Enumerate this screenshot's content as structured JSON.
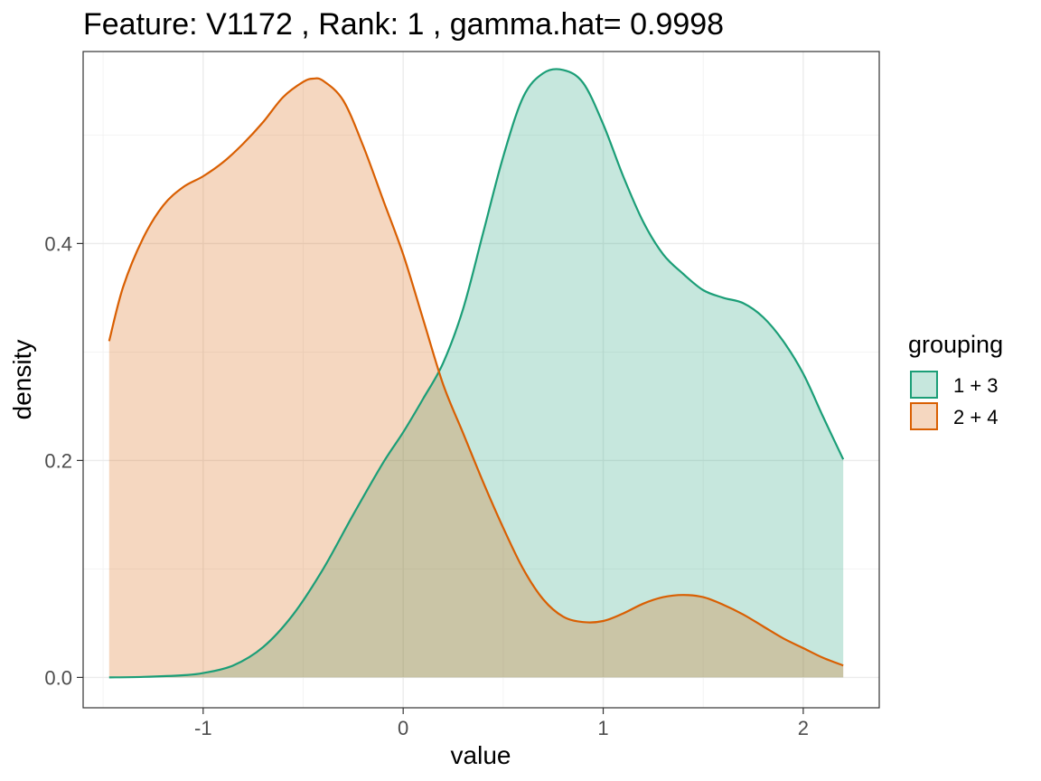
{
  "chart_data": {
    "type": "area",
    "title": "Feature: V1172 , Rank: 1 , gamma.hat= 0.9998",
    "xlabel": "value",
    "ylabel": "density",
    "xlim": [
      -1.6,
      2.38
    ],
    "ylim": [
      -0.028,
      0.577
    ],
    "x_ticks": [
      -1,
      0,
      1,
      2
    ],
    "x_tick_labels": [
      "-1",
      "0",
      "1",
      "2"
    ],
    "y_ticks": [
      0.0,
      0.2,
      0.4
    ],
    "y_tick_labels": [
      "0.0",
      "0.2",
      "0.4"
    ],
    "grid": true,
    "legend": {
      "title": "grouping",
      "placement": "right"
    },
    "series": [
      {
        "name": "1 + 3",
        "line_color": "#1b9e77",
        "fill_color": "#1b9e77",
        "fill_opacity": 0.25,
        "points": [
          [
            -1.47,
            0.0
          ],
          [
            -1.3,
            0.0005
          ],
          [
            -1.1,
            0.002
          ],
          [
            -1.0,
            0.004
          ],
          [
            -0.85,
            0.011
          ],
          [
            -0.7,
            0.028
          ],
          [
            -0.55,
            0.058
          ],
          [
            -0.4,
            0.1
          ],
          [
            -0.25,
            0.15
          ],
          [
            -0.1,
            0.198
          ],
          [
            0.0,
            0.226
          ],
          [
            0.1,
            0.257
          ],
          [
            0.2,
            0.29
          ],
          [
            0.3,
            0.34
          ],
          [
            0.4,
            0.41
          ],
          [
            0.5,
            0.48
          ],
          [
            0.6,
            0.535
          ],
          [
            0.7,
            0.557
          ],
          [
            0.8,
            0.56
          ],
          [
            0.9,
            0.548
          ],
          [
            1.0,
            0.51
          ],
          [
            1.1,
            0.462
          ],
          [
            1.2,
            0.42
          ],
          [
            1.3,
            0.39
          ],
          [
            1.4,
            0.372
          ],
          [
            1.5,
            0.357
          ],
          [
            1.6,
            0.35
          ],
          [
            1.7,
            0.345
          ],
          [
            1.8,
            0.332
          ],
          [
            1.9,
            0.31
          ],
          [
            2.0,
            0.28
          ],
          [
            2.1,
            0.24
          ],
          [
            2.2,
            0.201
          ]
        ]
      },
      {
        "name": "2 + 4",
        "line_color": "#d95f02",
        "fill_color": "#d95f02",
        "fill_opacity": 0.25,
        "points": [
          [
            -1.47,
            0.31
          ],
          [
            -1.4,
            0.36
          ],
          [
            -1.3,
            0.405
          ],
          [
            -1.2,
            0.435
          ],
          [
            -1.1,
            0.452
          ],
          [
            -1.0,
            0.462
          ],
          [
            -0.9,
            0.475
          ],
          [
            -0.8,
            0.492
          ],
          [
            -0.7,
            0.512
          ],
          [
            -0.6,
            0.535
          ],
          [
            -0.5,
            0.549
          ],
          [
            -0.45,
            0.552
          ],
          [
            -0.4,
            0.55
          ],
          [
            -0.3,
            0.532
          ],
          [
            -0.2,
            0.49
          ],
          [
            -0.1,
            0.44
          ],
          [
            0.0,
            0.39
          ],
          [
            0.1,
            0.33
          ],
          [
            0.2,
            0.27
          ],
          [
            0.3,
            0.225
          ],
          [
            0.4,
            0.18
          ],
          [
            0.5,
            0.138
          ],
          [
            0.6,
            0.1
          ],
          [
            0.7,
            0.072
          ],
          [
            0.8,
            0.056
          ],
          [
            0.9,
            0.051
          ],
          [
            1.0,
            0.052
          ],
          [
            1.1,
            0.059
          ],
          [
            1.2,
            0.068
          ],
          [
            1.3,
            0.074
          ],
          [
            1.4,
            0.076
          ],
          [
            1.5,
            0.074
          ],
          [
            1.6,
            0.067
          ],
          [
            1.7,
            0.058
          ],
          [
            1.8,
            0.047
          ],
          [
            1.9,
            0.036
          ],
          [
            2.0,
            0.027
          ],
          [
            2.1,
            0.018
          ],
          [
            2.2,
            0.011
          ]
        ]
      }
    ]
  }
}
